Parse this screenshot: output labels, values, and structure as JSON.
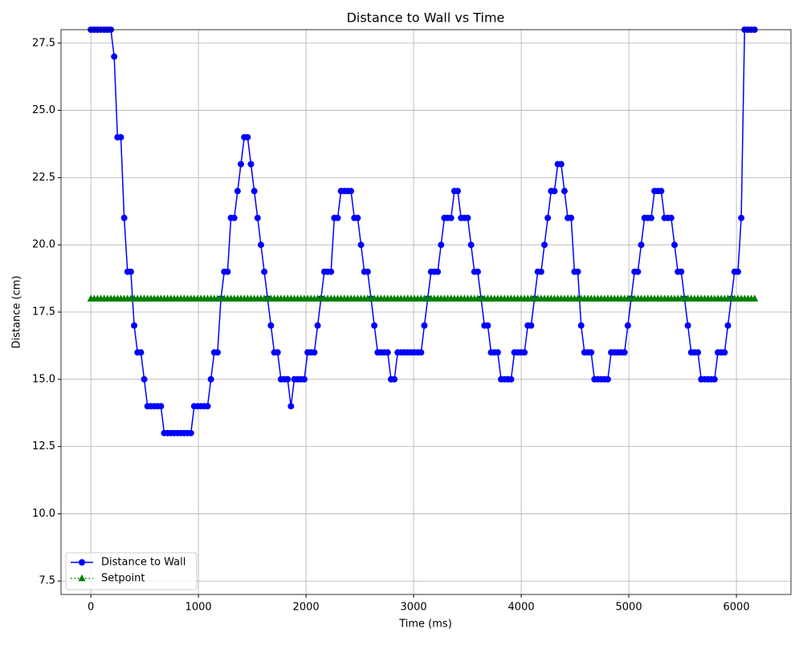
{
  "chart_data": {
    "type": "line",
    "title": "Distance to Wall vs Time",
    "xlabel": "Time (ms)",
    "ylabel": "Distance (cm)",
    "x": [
      0,
      31,
      62,
      93,
      124,
      155,
      186,
      217,
      248,
      279,
      310,
      341,
      372,
      403,
      434,
      465,
      496,
      527,
      558,
      589,
      620,
      651,
      682,
      713,
      744,
      775,
      806,
      837,
      868,
      899,
      930,
      961,
      992,
      1023,
      1054,
      1085,
      1116,
      1147,
      1178,
      1209,
      1240,
      1271,
      1302,
      1333,
      1364,
      1395,
      1426,
      1457,
      1488,
      1519,
      1550,
      1581,
      1612,
      1643,
      1674,
      1705,
      1736,
      1767,
      1798,
      1829,
      1860,
      1891,
      1922,
      1953,
      1984,
      2015,
      2046,
      2077,
      2108,
      2139,
      2170,
      2201,
      2232,
      2263,
      2294,
      2325,
      2356,
      2387,
      2418,
      2449,
      2480,
      2511,
      2542,
      2573,
      2604,
      2635,
      2666,
      2697,
      2728,
      2759,
      2790,
      2821,
      2852,
      2883,
      2914,
      2945,
      2976,
      3007,
      3038,
      3069,
      3100,
      3131,
      3162,
      3193,
      3224,
      3255,
      3286,
      3317,
      3348,
      3379,
      3410,
      3441,
      3472,
      3503,
      3534,
      3565,
      3596,
      3627,
      3658,
      3689,
      3720,
      3751,
      3782,
      3813,
      3844,
      3875,
      3906,
      3937,
      3968,
      3999,
      4030,
      4061,
      4092,
      4123,
      4154,
      4185,
      4216,
      4247,
      4278,
      4309,
      4340,
      4371,
      4402,
      4433,
      4464,
      4495,
      4526,
      4557,
      4588,
      4619,
      4650,
      4681,
      4712,
      4743,
      4774,
      4805,
      4836,
      4867,
      4898,
      4929,
      4960,
      4991,
      5022,
      5053,
      5084,
      5115,
      5146,
      5177,
      5208,
      5239,
      5270,
      5301,
      5332,
      5363,
      5394,
      5425,
      5456,
      5487,
      5518,
      5549,
      5580,
      5611,
      5642,
      5673,
      5704,
      5735,
      5766,
      5797,
      5828,
      5859,
      5890,
      5921,
      5952,
      5983,
      6014,
      6045,
      6076,
      6107,
      6138,
      6169
    ],
    "series": [
      {
        "name": "Distance to Wall",
        "color": "#0000ff",
        "linestyle": "solid",
        "marker": "o",
        "values": [
          28,
          28,
          28,
          28,
          28,
          28,
          28,
          27,
          24,
          24,
          21,
          19,
          19,
          17,
          16,
          16,
          15,
          14,
          14,
          14,
          14,
          14,
          13,
          13,
          13,
          13,
          13,
          13,
          13,
          13,
          13,
          14,
          14,
          14,
          14,
          14,
          15,
          16,
          16,
          18,
          19,
          19,
          21,
          21,
          22,
          23,
          24,
          24,
          23,
          22,
          21,
          20,
          19,
          18,
          17,
          16,
          16,
          15,
          15,
          15,
          14,
          15,
          15,
          15,
          15,
          16,
          16,
          16,
          17,
          18,
          19,
          19,
          19,
          21,
          21,
          22,
          22,
          22,
          22,
          21,
          21,
          20,
          19,
          19,
          18,
          17,
          16,
          16,
          16,
          16,
          15,
          15,
          16,
          16,
          16,
          16,
          16,
          16,
          16,
          16,
          17,
          18,
          19,
          19,
          19,
          20,
          21,
          21,
          21,
          22,
          22,
          21,
          21,
          21,
          20,
          19,
          19,
          18,
          17,
          17,
          16,
          16,
          16,
          15,
          15,
          15,
          15,
          16,
          16,
          16,
          16,
          17,
          17,
          18,
          19,
          19,
          20,
          21,
          22,
          22,
          23,
          23,
          22,
          21,
          21,
          19,
          19,
          17,
          16,
          16,
          16,
          15,
          15,
          15,
          15,
          15,
          16,
          16,
          16,
          16,
          16,
          17,
          18,
          19,
          19,
          20,
          21,
          21,
          21,
          22,
          22,
          22,
          21,
          21,
          21,
          20,
          19,
          19,
          18,
          17,
          16,
          16,
          16,
          15,
          15,
          15,
          15,
          15,
          16,
          16,
          16,
          17,
          18,
          19,
          19,
          21,
          28,
          28,
          28,
          28
        ]
      },
      {
        "name": "Setpoint",
        "color": "#008000",
        "linestyle": "dotted",
        "marker": "^",
        "values": [
          18,
          18,
          18,
          18,
          18,
          18,
          18,
          18,
          18,
          18,
          18,
          18,
          18,
          18,
          18,
          18,
          18,
          18,
          18,
          18,
          18,
          18,
          18,
          18,
          18,
          18,
          18,
          18,
          18,
          18,
          18,
          18,
          18,
          18,
          18,
          18,
          18,
          18,
          18,
          18,
          18,
          18,
          18,
          18,
          18,
          18,
          18,
          18,
          18,
          18,
          18,
          18,
          18,
          18,
          18,
          18,
          18,
          18,
          18,
          18,
          18,
          18,
          18,
          18,
          18,
          18,
          18,
          18,
          18,
          18,
          18,
          18,
          18,
          18,
          18,
          18,
          18,
          18,
          18,
          18,
          18,
          18,
          18,
          18,
          18,
          18,
          18,
          18,
          18,
          18,
          18,
          18,
          18,
          18,
          18,
          18,
          18,
          18,
          18,
          18,
          18,
          18,
          18,
          18,
          18,
          18,
          18,
          18,
          18,
          18,
          18,
          18,
          18,
          18,
          18,
          18,
          18,
          18,
          18,
          18,
          18,
          18,
          18,
          18,
          18,
          18,
          18,
          18,
          18,
          18,
          18,
          18,
          18,
          18,
          18,
          18,
          18,
          18,
          18,
          18,
          18,
          18,
          18,
          18,
          18,
          18,
          18,
          18,
          18,
          18,
          18,
          18,
          18,
          18,
          18,
          18,
          18,
          18,
          18,
          18,
          18,
          18,
          18,
          18,
          18,
          18,
          18,
          18,
          18,
          18,
          18,
          18,
          18,
          18,
          18,
          18,
          18,
          18,
          18,
          18,
          18,
          18,
          18,
          18,
          18,
          18,
          18,
          18,
          18,
          18,
          18,
          18,
          18,
          18,
          18,
          18,
          18,
          18,
          18,
          18
        ]
      }
    ],
    "xlim": [
      -277,
      6507
    ],
    "ylim": [
      7.0,
      28.0
    ],
    "xticks": [
      0,
      1000,
      2000,
      3000,
      4000,
      5000,
      6000
    ],
    "yticks": [
      7.5,
      {
        "value": 10,
        "label": "10.0"
      },
      12.5,
      {
        "value": 15,
        "label": "15.0"
      },
      17.5,
      {
        "value": 20,
        "label": "20.0"
      },
      22.5,
      {
        "value": 25,
        "label": "25.0"
      },
      27.5
    ],
    "grid": true,
    "legend": "lower left"
  }
}
